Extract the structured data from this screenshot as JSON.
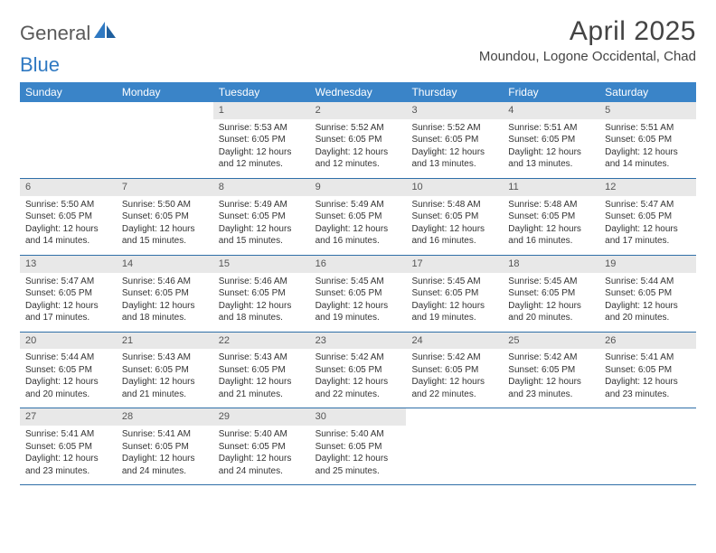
{
  "brand": {
    "word1": "General",
    "word2": "Blue"
  },
  "title": "April 2025",
  "location": "Moundou, Logone Occidental, Chad",
  "colors": {
    "header_bg": "#3a84c8",
    "header_text": "#ffffff",
    "row_divider": "#2f6fa8",
    "daynum_bg": "#e8e8e8",
    "body_text": "#333333",
    "logo_gray": "#5a5a5a",
    "logo_blue": "#2f79c2"
  },
  "daynames": [
    "Sunday",
    "Monday",
    "Tuesday",
    "Wednesday",
    "Thursday",
    "Friday",
    "Saturday"
  ],
  "weeks": [
    [
      {
        "empty": true
      },
      {
        "empty": true
      },
      {
        "n": "1",
        "sunrise": "Sunrise: 5:53 AM",
        "sunset": "Sunset: 6:05 PM",
        "day1": "Daylight: 12 hours",
        "day2": "and 12 minutes."
      },
      {
        "n": "2",
        "sunrise": "Sunrise: 5:52 AM",
        "sunset": "Sunset: 6:05 PM",
        "day1": "Daylight: 12 hours",
        "day2": "and 12 minutes."
      },
      {
        "n": "3",
        "sunrise": "Sunrise: 5:52 AM",
        "sunset": "Sunset: 6:05 PM",
        "day1": "Daylight: 12 hours",
        "day2": "and 13 minutes."
      },
      {
        "n": "4",
        "sunrise": "Sunrise: 5:51 AM",
        "sunset": "Sunset: 6:05 PM",
        "day1": "Daylight: 12 hours",
        "day2": "and 13 minutes."
      },
      {
        "n": "5",
        "sunrise": "Sunrise: 5:51 AM",
        "sunset": "Sunset: 6:05 PM",
        "day1": "Daylight: 12 hours",
        "day2": "and 14 minutes."
      }
    ],
    [
      {
        "n": "6",
        "sunrise": "Sunrise: 5:50 AM",
        "sunset": "Sunset: 6:05 PM",
        "day1": "Daylight: 12 hours",
        "day2": "and 14 minutes."
      },
      {
        "n": "7",
        "sunrise": "Sunrise: 5:50 AM",
        "sunset": "Sunset: 6:05 PM",
        "day1": "Daylight: 12 hours",
        "day2": "and 15 minutes."
      },
      {
        "n": "8",
        "sunrise": "Sunrise: 5:49 AM",
        "sunset": "Sunset: 6:05 PM",
        "day1": "Daylight: 12 hours",
        "day2": "and 15 minutes."
      },
      {
        "n": "9",
        "sunrise": "Sunrise: 5:49 AM",
        "sunset": "Sunset: 6:05 PM",
        "day1": "Daylight: 12 hours",
        "day2": "and 16 minutes."
      },
      {
        "n": "10",
        "sunrise": "Sunrise: 5:48 AM",
        "sunset": "Sunset: 6:05 PM",
        "day1": "Daylight: 12 hours",
        "day2": "and 16 minutes."
      },
      {
        "n": "11",
        "sunrise": "Sunrise: 5:48 AM",
        "sunset": "Sunset: 6:05 PM",
        "day1": "Daylight: 12 hours",
        "day2": "and 16 minutes."
      },
      {
        "n": "12",
        "sunrise": "Sunrise: 5:47 AM",
        "sunset": "Sunset: 6:05 PM",
        "day1": "Daylight: 12 hours",
        "day2": "and 17 minutes."
      }
    ],
    [
      {
        "n": "13",
        "sunrise": "Sunrise: 5:47 AM",
        "sunset": "Sunset: 6:05 PM",
        "day1": "Daylight: 12 hours",
        "day2": "and 17 minutes."
      },
      {
        "n": "14",
        "sunrise": "Sunrise: 5:46 AM",
        "sunset": "Sunset: 6:05 PM",
        "day1": "Daylight: 12 hours",
        "day2": "and 18 minutes."
      },
      {
        "n": "15",
        "sunrise": "Sunrise: 5:46 AM",
        "sunset": "Sunset: 6:05 PM",
        "day1": "Daylight: 12 hours",
        "day2": "and 18 minutes."
      },
      {
        "n": "16",
        "sunrise": "Sunrise: 5:45 AM",
        "sunset": "Sunset: 6:05 PM",
        "day1": "Daylight: 12 hours",
        "day2": "and 19 minutes."
      },
      {
        "n": "17",
        "sunrise": "Sunrise: 5:45 AM",
        "sunset": "Sunset: 6:05 PM",
        "day1": "Daylight: 12 hours",
        "day2": "and 19 minutes."
      },
      {
        "n": "18",
        "sunrise": "Sunrise: 5:45 AM",
        "sunset": "Sunset: 6:05 PM",
        "day1": "Daylight: 12 hours",
        "day2": "and 20 minutes."
      },
      {
        "n": "19",
        "sunrise": "Sunrise: 5:44 AM",
        "sunset": "Sunset: 6:05 PM",
        "day1": "Daylight: 12 hours",
        "day2": "and 20 minutes."
      }
    ],
    [
      {
        "n": "20",
        "sunrise": "Sunrise: 5:44 AM",
        "sunset": "Sunset: 6:05 PM",
        "day1": "Daylight: 12 hours",
        "day2": "and 20 minutes."
      },
      {
        "n": "21",
        "sunrise": "Sunrise: 5:43 AM",
        "sunset": "Sunset: 6:05 PM",
        "day1": "Daylight: 12 hours",
        "day2": "and 21 minutes."
      },
      {
        "n": "22",
        "sunrise": "Sunrise: 5:43 AM",
        "sunset": "Sunset: 6:05 PM",
        "day1": "Daylight: 12 hours",
        "day2": "and 21 minutes."
      },
      {
        "n": "23",
        "sunrise": "Sunrise: 5:42 AM",
        "sunset": "Sunset: 6:05 PM",
        "day1": "Daylight: 12 hours",
        "day2": "and 22 minutes."
      },
      {
        "n": "24",
        "sunrise": "Sunrise: 5:42 AM",
        "sunset": "Sunset: 6:05 PM",
        "day1": "Daylight: 12 hours",
        "day2": "and 22 minutes."
      },
      {
        "n": "25",
        "sunrise": "Sunrise: 5:42 AM",
        "sunset": "Sunset: 6:05 PM",
        "day1": "Daylight: 12 hours",
        "day2": "and 23 minutes."
      },
      {
        "n": "26",
        "sunrise": "Sunrise: 5:41 AM",
        "sunset": "Sunset: 6:05 PM",
        "day1": "Daylight: 12 hours",
        "day2": "and 23 minutes."
      }
    ],
    [
      {
        "n": "27",
        "sunrise": "Sunrise: 5:41 AM",
        "sunset": "Sunset: 6:05 PM",
        "day1": "Daylight: 12 hours",
        "day2": "and 23 minutes."
      },
      {
        "n": "28",
        "sunrise": "Sunrise: 5:41 AM",
        "sunset": "Sunset: 6:05 PM",
        "day1": "Daylight: 12 hours",
        "day2": "and 24 minutes."
      },
      {
        "n": "29",
        "sunrise": "Sunrise: 5:40 AM",
        "sunset": "Sunset: 6:05 PM",
        "day1": "Daylight: 12 hours",
        "day2": "and 24 minutes."
      },
      {
        "n": "30",
        "sunrise": "Sunrise: 5:40 AM",
        "sunset": "Sunset: 6:05 PM",
        "day1": "Daylight: 12 hours",
        "day2": "and 25 minutes."
      },
      {
        "empty": true
      },
      {
        "empty": true
      },
      {
        "empty": true
      }
    ]
  ]
}
